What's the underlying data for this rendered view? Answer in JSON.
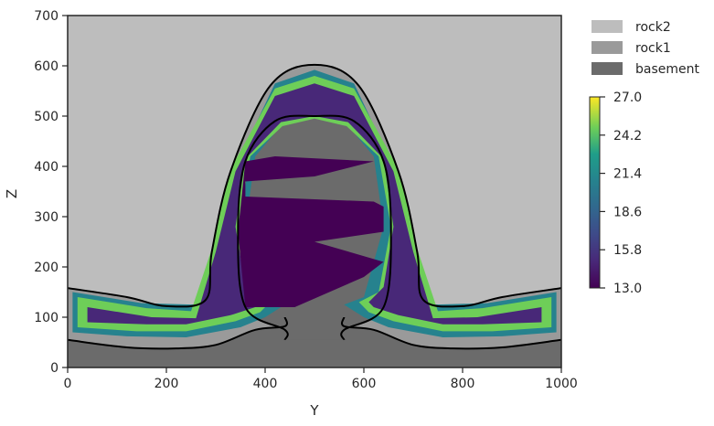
{
  "chart_data": {
    "type": "heatmap",
    "xlabel": "Y",
    "ylabel": "Z",
    "xlim": [
      0,
      1000
    ],
    "ylim": [
      0,
      700
    ],
    "xticks": [
      0,
      200,
      400,
      600,
      800,
      1000
    ],
    "yticks": [
      0,
      100,
      200,
      300,
      400,
      500,
      600,
      700
    ],
    "legend": {
      "placement": "outside-right-top",
      "entries": [
        {
          "label": "rock2",
          "color": "#bdbdbd"
        },
        {
          "label": "rock1",
          "color": "#9a9a9a"
        },
        {
          "label": "basement",
          "color": "#6b6b6b"
        }
      ]
    },
    "colorbar": {
      "colormap": "viridis",
      "min": 13.0,
      "max": 27.0,
      "ticks": [
        "27.0",
        "24.2",
        "21.4",
        "18.6",
        "15.8",
        "13.0"
      ]
    },
    "units": {
      "rock2": {
        "color": "#bdbdbd"
      },
      "rock1": {
        "color": "#9a9a9a"
      },
      "basement": {
        "color": "#6b6b6b"
      }
    },
    "boundaries": [
      {
        "name": "outer",
        "points": [
          [
            0,
            158
          ],
          [
            120,
            140
          ],
          [
            200,
            122
          ],
          [
            280,
            135
          ],
          [
            292,
            230
          ],
          [
            330,
            390
          ],
          [
            410,
            560
          ],
          [
            500,
            602
          ],
          [
            590,
            560
          ],
          [
            670,
            390
          ],
          [
            708,
            230
          ],
          [
            720,
            135
          ],
          [
            800,
            122
          ],
          [
            880,
            140
          ],
          [
            1000,
            158
          ]
        ]
      },
      {
        "name": "inner",
        "points": [
          [
            440,
            55
          ],
          [
            440,
            75
          ],
          [
            360,
            120
          ],
          [
            345,
            270
          ],
          [
            360,
            410
          ],
          [
            420,
            490
          ],
          [
            500,
            500
          ],
          [
            580,
            490
          ],
          [
            640,
            410
          ],
          [
            655,
            270
          ],
          [
            640,
            120
          ],
          [
            560,
            75
          ],
          [
            560,
            55
          ]
        ]
      },
      {
        "name": "base",
        "points": [
          [
            0,
            55
          ],
          [
            120,
            40
          ],
          [
            220,
            38
          ],
          [
            300,
            45
          ],
          [
            380,
            75
          ],
          [
            440,
            82
          ],
          [
            440,
            100
          ]
        ]
      },
      {
        "name": "base-right",
        "points": [
          [
            560,
            100
          ],
          [
            560,
            82
          ],
          [
            620,
            75
          ],
          [
            700,
            45
          ],
          [
            780,
            38
          ],
          [
            880,
            40
          ],
          [
            1000,
            55
          ]
        ]
      }
    ]
  }
}
